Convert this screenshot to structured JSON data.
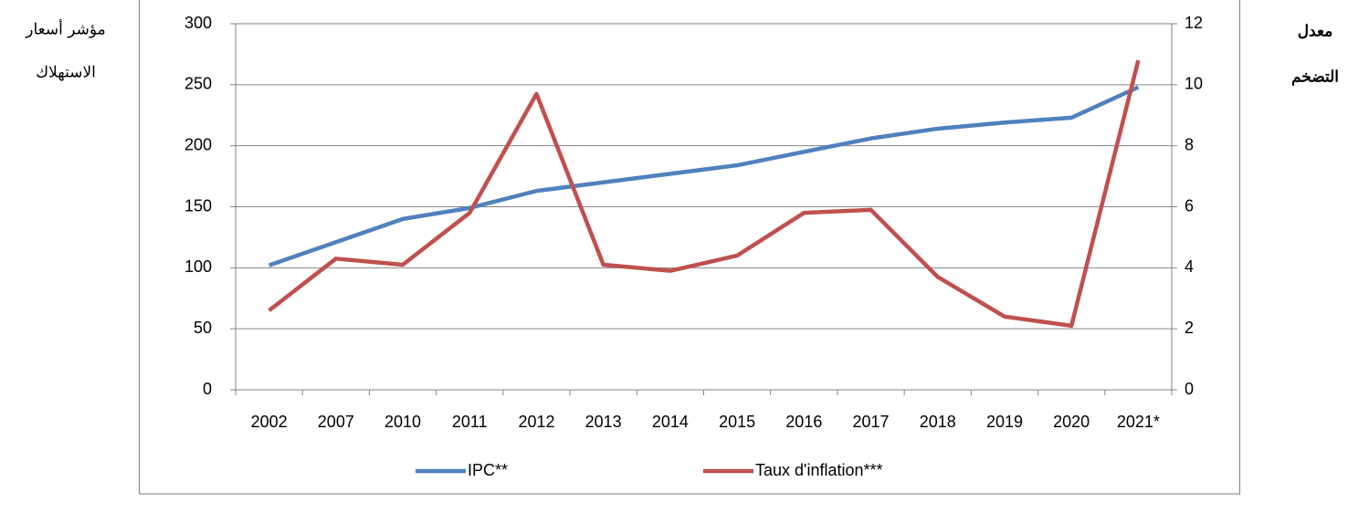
{
  "chart_data": {
    "type": "line",
    "ylabel": [
      "مؤشر أسعار",
      "الاستهلاك"
    ],
    "y2label": [
      "معدل",
      "التضخم"
    ],
    "categories": [
      "2002",
      "2007",
      "2010",
      "2011",
      "2012",
      "2013",
      "2014",
      "2015",
      "2016",
      "2017",
      "2018",
      "2019",
      "2020",
      "2021*"
    ],
    "series": [
      {
        "name": "IPC**",
        "color": "#4f81bd",
        "values": [
          102,
          121,
          140,
          149,
          163,
          170,
          177,
          184,
          195,
          206,
          214,
          219,
          223,
          248
        ]
      },
      {
        "name": "Taux d'inflation***",
        "color": "#c0504d",
        "axis": "y2",
        "values": [
          2.6,
          4.3,
          4.1,
          5.8,
          9.7,
          4.1,
          3.9,
          4.4,
          5.8,
          5.9,
          3.7,
          2.4,
          2.1,
          10.8
        ]
      }
    ],
    "ylim": [
      0,
      300
    ],
    "yticks": [
      0,
      50,
      100,
      150,
      200,
      250,
      300
    ],
    "y2lim": [
      0,
      12
    ],
    "y2ticks": [
      0,
      2,
      4,
      6,
      8,
      10,
      12
    ],
    "grid": true,
    "legend": "bottom"
  }
}
